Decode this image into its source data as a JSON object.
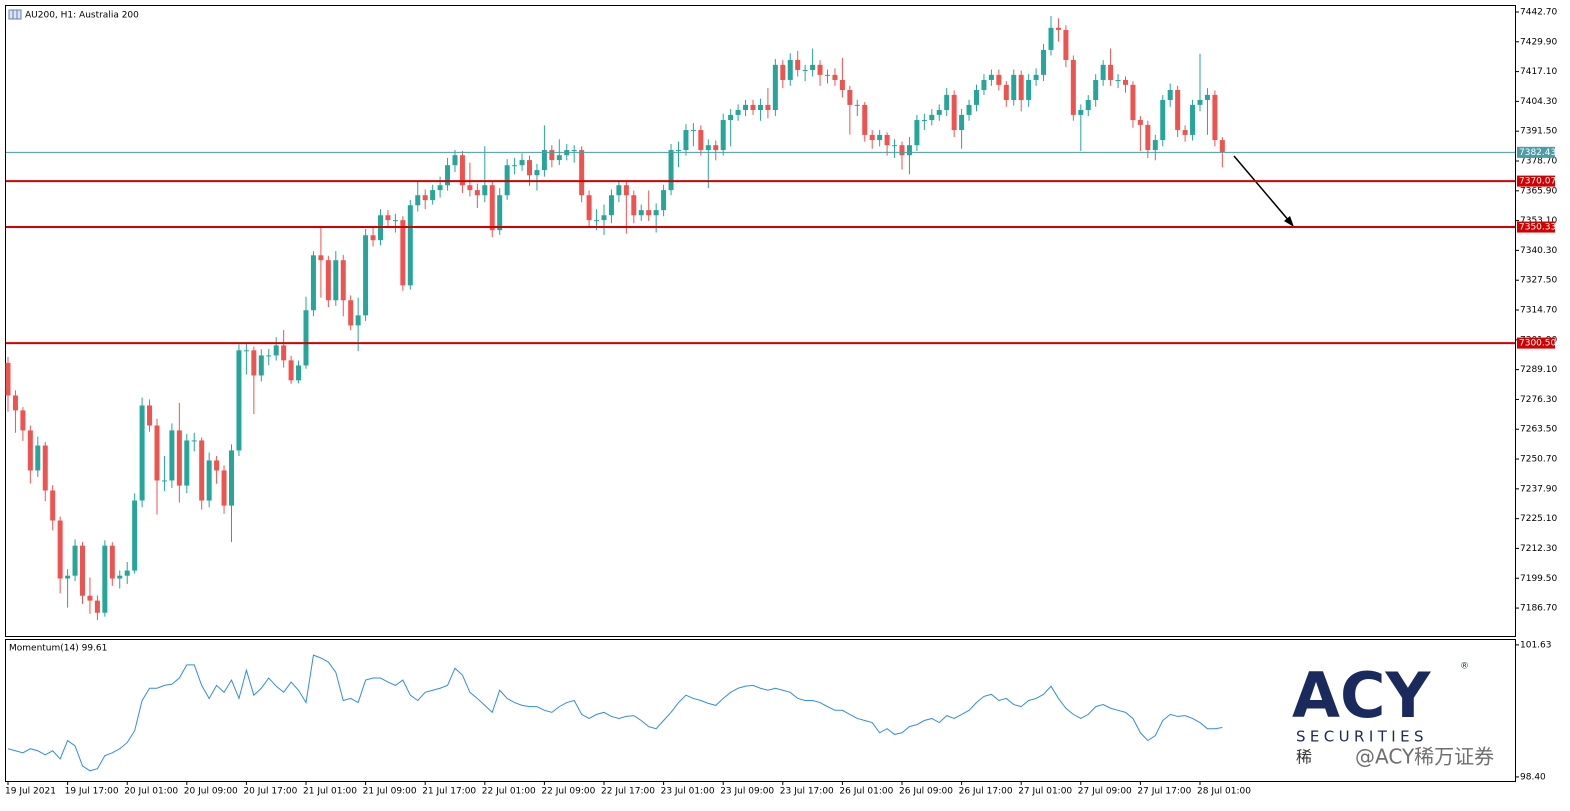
{
  "chart_data": [
    {
      "type": "candlestick",
      "title": "AU200, H1:  Australia 200",
      "up_color": "#26a69a",
      "down_color": "#ef5350",
      "ylim": [
        7174.7,
        7445.7
      ],
      "yticks": [
        {
          "value": 7442.7,
          "label": "7442.70"
        },
        {
          "value": 7429.9,
          "label": "7429.90"
        },
        {
          "value": 7417.1,
          "label": "7417.10"
        },
        {
          "value": 7404.3,
          "label": "7404.30"
        },
        {
          "value": 7391.5,
          "label": "7391.50"
        },
        {
          "value": 7378.7,
          "label": "7378.70"
        },
        {
          "value": 7365.9,
          "label": "7365.90"
        },
        {
          "value": 7353.1,
          "label": "7353.10"
        },
        {
          "value": 7340.3,
          "label": "7340.30"
        },
        {
          "value": 7327.5,
          "label": "7327.50"
        },
        {
          "value": 7314.7,
          "label": "7314.70"
        },
        {
          "value": 7301.9,
          "label": "7301.90"
        },
        {
          "value": 7289.1,
          "label": "7289.10"
        },
        {
          "value": 7276.3,
          "label": "7276.30"
        },
        {
          "value": 7263.5,
          "label": "7263.50"
        },
        {
          "value": 7250.7,
          "label": "7250.70"
        },
        {
          "value": 7237.9,
          "label": "7237.90"
        },
        {
          "value": 7225.1,
          "label": "7225.10"
        },
        {
          "value": 7212.3,
          "label": "7212.30"
        },
        {
          "value": 7199.5,
          "label": "7199.50"
        },
        {
          "value": 7186.7,
          "label": "7186.70"
        }
      ],
      "xticks": [
        {
          "value": 0,
          "label": "19 Jul 2021"
        },
        {
          "value": 8,
          "label": "19 Jul 17:00"
        },
        {
          "value": 16,
          "label": "20 Jul 01:00"
        },
        {
          "value": 24,
          "label": "20 Jul 09:00"
        },
        {
          "value": 32,
          "label": "20 Jul 17:00"
        },
        {
          "value": 40,
          "label": "21 Jul 01:00"
        },
        {
          "value": 48,
          "label": "21 Jul 09:00"
        },
        {
          "value": 56,
          "label": "21 Jul 17:00"
        },
        {
          "value": 64,
          "label": "22 Jul 01:00"
        },
        {
          "value": 72,
          "label": "22 Jul 09:00"
        },
        {
          "value": 80,
          "label": "22 Jul 17:00"
        },
        {
          "value": 88,
          "label": "23 Jul 01:00"
        },
        {
          "value": 96,
          "label": "23 Jul 09:00"
        },
        {
          "value": 104,
          "label": "23 Jul 17:00"
        },
        {
          "value": 112,
          "label": "26 Jul 01:00"
        },
        {
          "value": 120,
          "label": "26 Jul 09:00"
        },
        {
          "value": 128,
          "label": "26 Jul 17:00"
        },
        {
          "value": 136,
          "label": "27 Jul 01:00"
        },
        {
          "value": 144,
          "label": "27 Jul 09:00"
        },
        {
          "value": 152,
          "label": "27 Jul 17:00"
        },
        {
          "value": 160,
          "label": "28 Jul 01:00"
        }
      ],
      "levels": [
        {
          "value": 7382.43,
          "label": "7382.43",
          "color": "#4a9da6"
        },
        {
          "value": 7370.07,
          "label": "7370.07",
          "color": "#d40000"
        },
        {
          "value": 7350.33,
          "label": "7350.33",
          "color": "#d40000"
        },
        {
          "value": 7300.5,
          "label": "7300.50",
          "color": "#d40000"
        }
      ],
      "open": [
        7292.0,
        7278.0,
        7271.6,
        7263.0,
        7245.8,
        7256.5,
        7237.2,
        7224.3,
        7199.4,
        7200.6,
        7213.5,
        7192.0,
        7189.9,
        7184.7,
        7213.5,
        7199.4,
        7200.6,
        7202.8,
        7232.9,
        7273.7,
        7265.1,
        7241.5,
        7241.5,
        7263.0,
        7239.3,
        7258.7,
        7258.7,
        7232.9,
        7250.1,
        7245.8,
        7230.7,
        7254.4,
        7297.4,
        7297.4,
        7286.6,
        7295.2,
        7295.2,
        7299.5,
        7293.1,
        7284.5,
        7290.9,
        7314.6,
        7338.2,
        7336.1,
        7318.9,
        7336.1,
        7318.9,
        7308.1,
        7312.4,
        7346.8,
        7344.7,
        7355.4,
        7353.3,
        7353.3,
        7325.3,
        7359.7,
        7364.0,
        7361.9,
        7366.2,
        7368.3,
        7376.9,
        7381.2,
        7368.3,
        7366.2,
        7364.0,
        7368.3,
        7349.0,
        7364.0,
        7376.9,
        7376.9,
        7379.1,
        7372.6,
        7374.8,
        7383.4,
        7379.1,
        7381.2,
        7383.4,
        7383.4,
        7364.0,
        7353.3,
        7353.3,
        7355.4,
        7364.0,
        7368.3,
        7364.0,
        7355.4,
        7357.6,
        7355.4,
        7357.6,
        7366.2,
        7383.4,
        7383.4,
        7392.0,
        7392.0,
        7383.4,
        7385.5,
        7383.4,
        7396.3,
        7398.5,
        7400.6,
        7402.8,
        7400.6,
        7402.8,
        7400.6,
        7420.0,
        7413.5,
        7422.1,
        7417.8,
        7417.8,
        7420.0,
        7415.7,
        7415.7,
        7413.5,
        7409.2,
        7402.8,
        7402.8,
        7389.9,
        7387.7,
        7389.9,
        7385.5,
        7385.5,
        7381.2,
        7385.5,
        7396.3,
        7396.3,
        7398.5,
        7400.6,
        7407.1,
        7392.0,
        7398.5,
        7402.8,
        7409.2,
        7413.5,
        7415.7,
        7411.4,
        7404.9,
        7415.7,
        7404.9,
        7413.5,
        7415.7,
        7426.4,
        7435.9,
        7435.0,
        7422.1,
        7398.5,
        7400.6,
        7404.9,
        7413.5,
        7420.0,
        7413.5,
        7413.5,
        7411.4,
        7396.3,
        7394.2,
        7383.4,
        7387.7,
        7404.9,
        7409.2,
        7392.0,
        7389.9,
        7402.8,
        7404.9,
        7407.1,
        7387.7
      ],
      "high": [
        7294.5,
        7280.2,
        7273.0,
        7265.1,
        7260.3,
        7258.0,
        7239.5,
        7226.0,
        7203.4,
        7216.2,
        7215.0,
        7199.8,
        7192.1,
        7215.8,
        7215.0,
        7202.9,
        7206.5,
        7236.0,
        7277.1,
        7276.3,
        7268.0,
        7252.0,
        7266.0,
        7274.8,
        7261.5,
        7262.0,
        7260.0,
        7253.5,
        7252.0,
        7248.0,
        7257.0,
        7300.0,
        7300.5,
        7299.0,
        7297.8,
        7298.0,
        7303.0,
        7306.1,
        7295.0,
        7293.0,
        7320.4,
        7340.0,
        7350.0,
        7338.0,
        7340.0,
        7338.4,
        7321.0,
        7320.0,
        7349.5,
        7350.0,
        7358.0,
        7357.6,
        7356.0,
        7355.0,
        7362.0,
        7370.0,
        7366.5,
        7368.5,
        7372.0,
        7380.0,
        7383.5,
        7383.0,
        7378.0,
        7369.0,
        7385.0,
        7370.0,
        7367.0,
        7379.5,
        7380.0,
        7382.0,
        7381.0,
        7377.5,
        7394.0,
        7385.5,
        7388.0,
        7386.0,
        7385.5,
        7385.0,
        7366.0,
        7358.0,
        7360.0,
        7366.5,
        7370.5,
        7370.0,
        7366.0,
        7360.0,
        7366.0,
        7360.5,
        7368.5,
        7386.0,
        7387.0,
        7394.5,
        7395.0,
        7394.0,
        7388.0,
        7387.5,
        7399.0,
        7401.0,
        7403.0,
        7405.0,
        7405.0,
        7405.5,
        7410.0,
        7422.5,
        7422.0,
        7425.0,
        7426.0,
        7420.0,
        7427.0,
        7422.0,
        7418.0,
        7418.5,
        7423.0,
        7411.0,
        7405.0,
        7404.0,
        7392.0,
        7392.0,
        7391.0,
        7388.0,
        7387.0,
        7389.0,
        7398.5,
        7399.0,
        7401.0,
        7403.0,
        7410.0,
        7409.0,
        7401.0,
        7405.0,
        7411.5,
        7416.0,
        7418.0,
        7418.0,
        7413.0,
        7418.0,
        7417.5,
        7416.0,
        7418.5,
        7429.0,
        7441.0,
        7440.0,
        7437.0,
        7424.0,
        7403.0,
        7407.0,
        7416.0,
        7422.0,
        7427.0,
        7416.0,
        7415.0,
        7413.0,
        7398.0,
        7396.0,
        7390.0,
        7407.0,
        7412.0,
        7411.0,
        7394.0,
        7405.0,
        7424.8,
        7410.0,
        7409.0,
        7389.0
      ],
      "low": [
        7271.0,
        7262.0,
        7258.5,
        7240.2,
        7243.0,
        7232.6,
        7220.1,
        7193.0,
        7186.9,
        7198.3,
        7188.5,
        7184.2,
        7181.5,
        7183.0,
        7196.2,
        7195.1,
        7197.0,
        7201.5,
        7230.0,
        7262.4,
        7226.9,
        7237.0,
        7238.2,
        7232.0,
        7236.0,
        7254.0,
        7229.0,
        7230.0,
        7240.1,
        7227.2,
        7215.0,
        7252.0,
        7287.0,
        7270.0,
        7284.0,
        7291.0,
        7293.0,
        7290.0,
        7283.0,
        7283.2,
        7289.5,
        7312.0,
        7320.0,
        7316.0,
        7316.5,
        7312.0,
        7306.0,
        7297.0,
        7310.0,
        7342.0,
        7342.5,
        7350.0,
        7348.0,
        7323.0,
        7323.5,
        7357.0,
        7358.0,
        7360.0,
        7363.0,
        7366.0,
        7374.0,
        7365.0,
        7363.5,
        7358.5,
        7361.0,
        7346.0,
        7347.0,
        7362.0,
        7373.0,
        7374.5,
        7368.0,
        7366.0,
        7372.0,
        7376.0,
        7377.0,
        7379.0,
        7378.0,
        7361.0,
        7350.0,
        7349.0,
        7347.0,
        7352.0,
        7361.0,
        7347.5,
        7352.0,
        7353.0,
        7353.0,
        7348.0,
        7355.0,
        7364.0,
        7376.0,
        7381.0,
        7385.0,
        7381.0,
        7367.0,
        7379.0,
        7381.0,
        7385.0,
        7396.0,
        7398.0,
        7398.5,
        7396.0,
        7397.0,
        7398.0,
        7410.0,
        7411.0,
        7415.0,
        7413.0,
        7415.0,
        7411.0,
        7412.0,
        7411.0,
        7406.0,
        7390.0,
        7398.0,
        7387.0,
        7384.0,
        7385.0,
        7381.0,
        7380.0,
        7375.0,
        7373.0,
        7383.0,
        7392.0,
        7394.0,
        7396.0,
        7398.0,
        7389.0,
        7384.0,
        7396.0,
        7400.0,
        7407.0,
        7411.0,
        7409.0,
        7402.0,
        7402.5,
        7400.0,
        7402.0,
        7411.0,
        7413.0,
        7424.0,
        7430.0,
        7419.0,
        7396.0,
        7383.0,
        7398.0,
        7402.0,
        7411.0,
        7411.0,
        7410.0,
        7408.0,
        7393.0,
        7383.0,
        7380.0,
        7379.0,
        7385.0,
        7402.0,
        7389.0,
        7387.0,
        7387.5,
        7400.0,
        7390.0,
        7385.0,
        7376.0
      ],
      "close": [
        7278.0,
        7271.6,
        7263.0,
        7245.8,
        7256.5,
        7237.2,
        7224.3,
        7199.4,
        7200.6,
        7213.5,
        7192.0,
        7189.9,
        7184.7,
        7213.5,
        7199.4,
        7200.6,
        7202.8,
        7232.9,
        7273.7,
        7265.1,
        7241.5,
        7241.5,
        7263.0,
        7239.3,
        7258.7,
        7258.7,
        7232.9,
        7250.1,
        7245.8,
        7230.7,
        7254.4,
        7297.4,
        7297.4,
        7286.6,
        7295.2,
        7295.2,
        7299.5,
        7293.1,
        7284.5,
        7290.9,
        7314.6,
        7338.2,
        7336.1,
        7318.9,
        7336.1,
        7318.9,
        7308.1,
        7312.4,
        7346.8,
        7344.7,
        7355.4,
        7353.3,
        7353.3,
        7325.3,
        7359.7,
        7364.0,
        7361.9,
        7366.2,
        7368.3,
        7376.9,
        7381.2,
        7368.3,
        7366.2,
        7364.0,
        7368.3,
        7349.0,
        7364.0,
        7376.9,
        7376.9,
        7379.1,
        7372.6,
        7374.8,
        7383.4,
        7379.1,
        7381.2,
        7383.4,
        7383.4,
        7364.0,
        7353.3,
        7353.3,
        7355.4,
        7364.0,
        7368.3,
        7364.0,
        7355.4,
        7357.6,
        7355.4,
        7357.6,
        7366.2,
        7383.4,
        7383.4,
        7392.0,
        7392.0,
        7383.4,
        7385.5,
        7383.4,
        7396.3,
        7398.5,
        7400.6,
        7402.8,
        7400.6,
        7402.8,
        7400.6,
        7420.0,
        7413.5,
        7422.1,
        7417.8,
        7417.8,
        7420.0,
        7415.7,
        7415.7,
        7413.5,
        7409.2,
        7402.8,
        7402.8,
        7389.9,
        7387.7,
        7389.9,
        7385.5,
        7385.5,
        7381.2,
        7385.5,
        7396.3,
        7396.3,
        7398.5,
        7400.6,
        7407.1,
        7392.0,
        7398.5,
        7402.8,
        7409.2,
        7413.5,
        7415.7,
        7411.4,
        7404.9,
        7415.7,
        7404.9,
        7413.5,
        7415.7,
        7426.4,
        7435.9,
        7435.0,
        7422.1,
        7398.5,
        7400.6,
        7404.9,
        7413.5,
        7420.0,
        7413.5,
        7413.5,
        7411.4,
        7396.3,
        7394.2,
        7383.4,
        7387.7,
        7404.9,
        7409.2,
        7392.0,
        7389.9,
        7402.8,
        7404.9,
        7407.1,
        7387.7,
        7382.43
      ]
    },
    {
      "type": "line",
      "title": "Momentum(14) 99.61",
      "color": "#2f8fe0",
      "ylim": [
        98.3,
        101.75
      ],
      "yticks": [
        101.63,
        {
          "value": 98.4,
          "label": "98.40"
        }
      ],
      "values": [
        99.09,
        99.04,
        98.99,
        99.09,
        99.04,
        98.94,
        99.04,
        98.84,
        99.29,
        99.16,
        98.67,
        98.55,
        98.6,
        98.92,
        98.99,
        99.09,
        99.24,
        99.53,
        100.27,
        100.57,
        100.57,
        100.64,
        100.67,
        100.82,
        101.14,
        101.14,
        100.64,
        100.32,
        100.64,
        100.47,
        100.77,
        100.32,
        101.01,
        100.4,
        100.57,
        100.82,
        100.62,
        100.47,
        100.72,
        100.52,
        100.22,
        101.38,
        101.31,
        101.21,
        100.96,
        100.27,
        100.32,
        100.22,
        100.77,
        100.82,
        100.82,
        100.72,
        100.64,
        100.77,
        100.4,
        100.27,
        100.47,
        100.52,
        100.57,
        100.64,
        101.06,
        100.89,
        100.47,
        100.32,
        100.15,
        99.98,
        100.52,
        100.32,
        100.22,
        100.15,
        100.12,
        100.12,
        100.03,
        99.98,
        100.12,
        100.22,
        100.27,
        99.93,
        99.83,
        99.93,
        99.98,
        99.88,
        99.83,
        99.88,
        99.9,
        99.78,
        99.63,
        99.58,
        99.78,
        99.98,
        100.22,
        100.4,
        100.32,
        100.27,
        100.2,
        100.15,
        100.32,
        100.47,
        100.57,
        100.62,
        100.64,
        100.57,
        100.52,
        100.57,
        100.52,
        100.47,
        100.32,
        100.27,
        100.27,
        100.22,
        100.12,
        100.03,
        100.03,
        99.93,
        99.83,
        99.78,
        99.73,
        99.48,
        99.58,
        99.44,
        99.48,
        99.63,
        99.68,
        99.78,
        99.83,
        99.73,
        99.9,
        99.83,
        99.93,
        100.03,
        100.22,
        100.37,
        100.42,
        100.27,
        100.32,
        100.17,
        100.12,
        100.27,
        100.32,
        100.42,
        100.62,
        100.32,
        100.08,
        99.93,
        99.83,
        99.93,
        100.12,
        100.17,
        100.08,
        100.03,
        99.98,
        99.83,
        99.48,
        99.29,
        99.41,
        99.78,
        99.93,
        99.88,
        99.9,
        99.83,
        99.73,
        99.58,
        99.58,
        99.61
      ]
    }
  ],
  "logo": {
    "brand": "ACY",
    "mark": "®",
    "tagline": "SECURITIES",
    "watermark_left": "稀",
    "watermark": "@ACY稀万证券"
  }
}
